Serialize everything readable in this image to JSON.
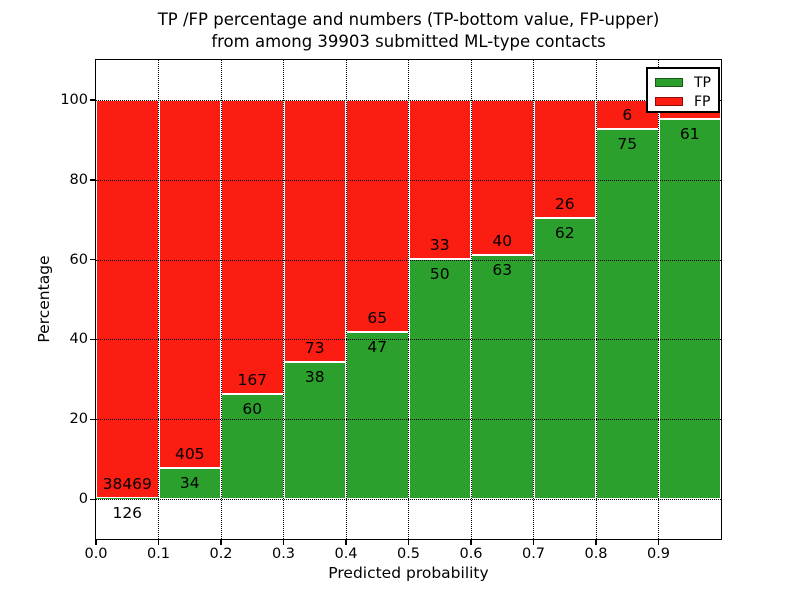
{
  "title": {
    "line1": "TP /FP percentage and numbers (TP-bottom value, FP-upper)",
    "line2": "from among 39903 submitted ML-type contacts"
  },
  "axes": {
    "ylabel": "Percentage",
    "xlabel": "Predicted probability",
    "yticks": [
      0,
      20,
      40,
      60,
      80,
      100
    ],
    "xticks": [
      "0.0",
      "0.1",
      "0.2",
      "0.3",
      "0.4",
      "0.5",
      "0.6",
      "0.7",
      "0.8",
      "0.9"
    ],
    "ylim": [
      -10,
      110
    ],
    "xlim": [
      0.0,
      1.0
    ],
    "grid": "dotted"
  },
  "legend": {
    "position": "upper right",
    "items": [
      {
        "label": "TP",
        "color": "#2ca02c"
      },
      {
        "label": "FP",
        "color": "#fb1c12"
      }
    ]
  },
  "colors": {
    "tp": "#2ca02c",
    "fp": "#fb1c12",
    "bar_edge": "#ffffff",
    "grid": "#000000",
    "text": "#000000"
  },
  "chart_data": {
    "type": "bar",
    "stacked": true,
    "normalized_to_percent": true,
    "title": "TP /FP percentage and numbers (TP-bottom value, FP-upper) from among 39903 submitted ML-type contacts",
    "xlabel": "Predicted probability",
    "ylabel": "Percentage",
    "ylim": [
      -10,
      110
    ],
    "bin_width": 0.1,
    "categories": [
      "0.0-0.1",
      "0.1-0.2",
      "0.2-0.3",
      "0.3-0.4",
      "0.4-0.5",
      "0.5-0.6",
      "0.6-0.7",
      "0.7-0.8",
      "0.8-0.9",
      "0.9-1.0"
    ],
    "series": [
      {
        "name": "TP",
        "counts": [
          126,
          34,
          60,
          38,
          47,
          50,
          63,
          62,
          75,
          61
        ]
      },
      {
        "name": "FP",
        "counts": [
          38469,
          405,
          167,
          73,
          65,
          33,
          40,
          26,
          6,
          3
        ]
      }
    ],
    "tp_labels": [
      "126",
      "34",
      "60",
      "38",
      "47",
      "50",
      "63",
      "62",
      "75",
      "61"
    ],
    "fp_labels": [
      "38469",
      "405",
      "167",
      "73",
      "65",
      "33",
      "40",
      "26",
      "6",
      ""
    ],
    "total_contacts": 39903,
    "note_fp_last_label_hidden_behind_legend": true
  }
}
